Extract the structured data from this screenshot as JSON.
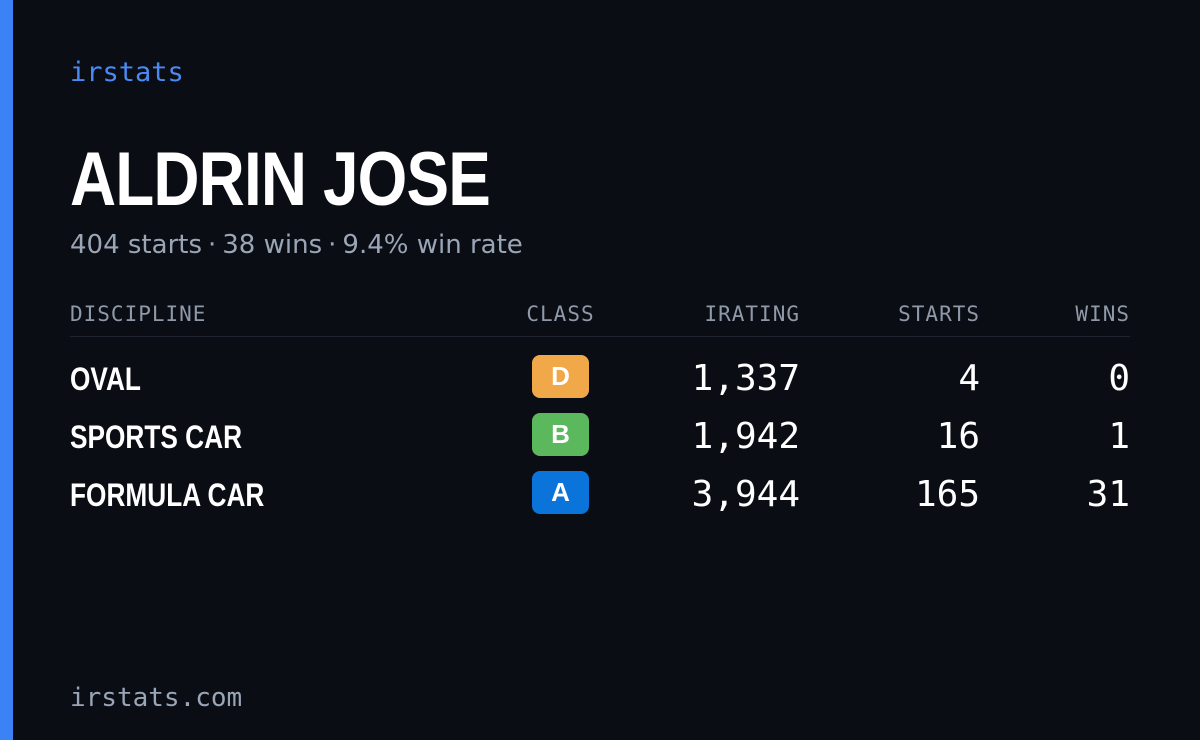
{
  "brand": "irstats",
  "driver": {
    "name": "ALDRIN JOSE"
  },
  "summary": {
    "starts": "404 starts",
    "wins": "38 wins",
    "win_rate": "9.4% win rate",
    "separator": "·"
  },
  "table": {
    "headers": {
      "discipline": "DISCIPLINE",
      "class": "CLASS",
      "irating": "IRATING",
      "starts": "STARTS",
      "wins": "WINS"
    },
    "rows": [
      {
        "discipline": "OVAL",
        "class": "D",
        "class_color": "#f0a848",
        "irating": "1,337",
        "starts": "4",
        "wins": "0"
      },
      {
        "discipline": "SPORTS CAR",
        "class": "B",
        "class_color": "#5cb85c",
        "irating": "1,942",
        "starts": "16",
        "wins": "1"
      },
      {
        "discipline": "FORMULA CAR",
        "class": "A",
        "class_color": "#0a74da",
        "irating": "3,944",
        "starts": "165",
        "wins": "31"
      }
    ]
  },
  "footer": {
    "url": "irstats.com"
  },
  "colors": {
    "background": "#0a0d14",
    "accent": "#3b82f6",
    "muted_text": "#9aa5b6"
  }
}
